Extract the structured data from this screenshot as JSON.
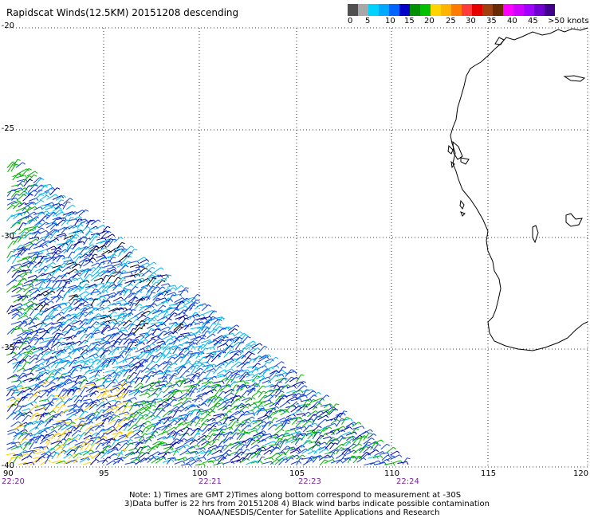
{
  "header": {
    "title": "Rapidscat Winds(12.5KM) 20151208 descending"
  },
  "legend": {
    "colors": [
      "#555555",
      "#9a9a9a",
      "#00c8ff",
      "#00a0ff",
      "#0050ff",
      "#0000d0",
      "#009600",
      "#00c800",
      "#ffd000",
      "#ffb000",
      "#ff7000",
      "#ff3030",
      "#e00000",
      "#9b3a10",
      "#5a2000",
      "#ff00ff",
      "#d000ff",
      "#9a00ff",
      "#6000c0",
      "#3a0080"
    ],
    "labels": [
      "0",
      "5",
      "10",
      "15",
      "20",
      "25",
      "30",
      "35",
      "40",
      "45",
      ">50 knots"
    ]
  },
  "map": {
    "lat_labels": [
      "-20",
      "-25",
      "-30",
      "-35",
      "-40"
    ],
    "lon_labels": [
      "90",
      "95",
      "100",
      "105",
      "110",
      "115",
      "120"
    ],
    "time_labels": [
      "22:20",
      "22:21",
      "22:23",
      "22:24"
    ]
  },
  "notes": {
    "line1": "Note: 1) Times are GMT 2)Times along bottom correspond to measurement at -30S",
    "line2": "3)Data buffer is 22 hrs from 20151208 4) Black wind barbs indicate possible contamination",
    "line3": "NOAA/NESDIS/Center for Satellite Applications and Research"
  }
}
